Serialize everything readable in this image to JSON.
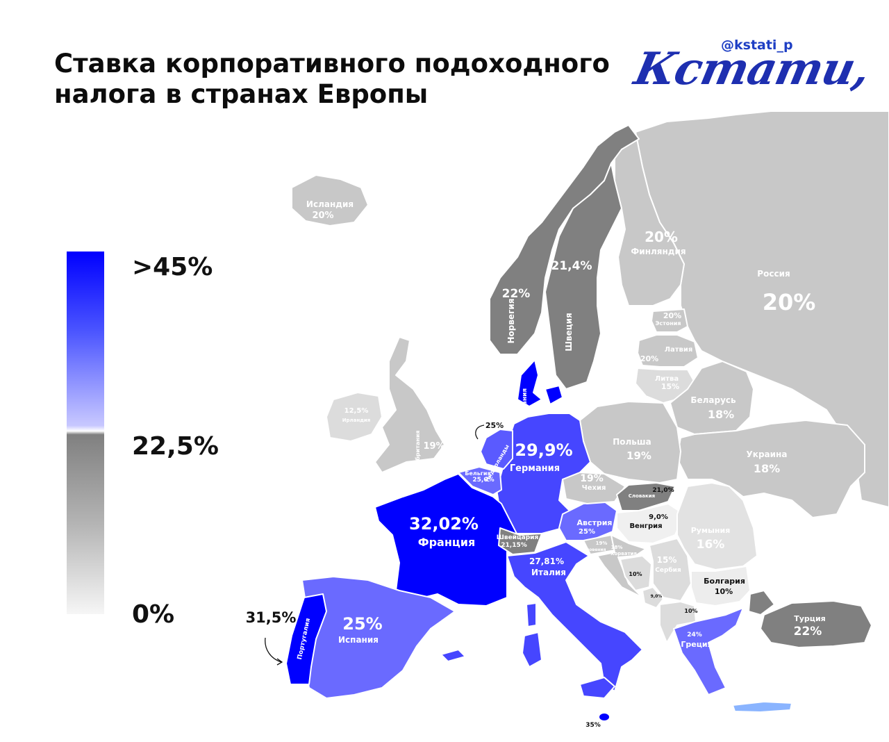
{
  "title": {
    "line1": "Ставка корпоративного подоходного",
    "line2": "налога в странах Европы"
  },
  "brand": {
    "handle": "@kstati_p",
    "logo": "Кстати,"
  },
  "legend": {
    "high": ">45%",
    "mid": "22,5%",
    "low": "0%"
  },
  "colors": {
    "high": "#0000ff",
    "mid_blue": "#6a6aff",
    "gray_dark": "#808080",
    "gray_light": "#c8c8c8",
    "gray_pale": "#dcdcdc"
  },
  "countries": [
    {
      "id": "iceland",
      "name": "Исландия",
      "rate": "20%"
    },
    {
      "id": "norway",
      "name": "Норвегия",
      "rate": "22%"
    },
    {
      "id": "sweden",
      "name": "Швеция",
      "rate": "21,4%"
    },
    {
      "id": "finland",
      "name": "Финляндия",
      "rate": "20%"
    },
    {
      "id": "russia",
      "name": "Россия",
      "rate": "20%"
    },
    {
      "id": "estonia",
      "name": "Эстония",
      "rate": "20%"
    },
    {
      "id": "latvia",
      "name": "Латвия",
      "rate": "20%"
    },
    {
      "id": "lithuania",
      "name": "Литва",
      "rate": "15%"
    },
    {
      "id": "belarus",
      "name": "Беларусь",
      "rate": "18%"
    },
    {
      "id": "ukraine",
      "name": "Украина",
      "rate": "18%"
    },
    {
      "id": "poland",
      "name": "Польша",
      "rate": "19%"
    },
    {
      "id": "germany",
      "name": "Германия",
      "rate": "29,9%"
    },
    {
      "id": "denmark",
      "name": "Дания",
      "rate": ""
    },
    {
      "id": "netherlands",
      "name": "Нидерланды",
      "rate": "25%"
    },
    {
      "id": "belgium",
      "name": "Бельгия",
      "rate": "25,0%"
    },
    {
      "id": "uk",
      "name": "Великобритания",
      "rate": "19%"
    },
    {
      "id": "ireland",
      "name": "Ирландия",
      "rate": "12,5%"
    },
    {
      "id": "france",
      "name": "Франция",
      "rate": "32,02%"
    },
    {
      "id": "spain",
      "name": "Испания",
      "rate": "25%"
    },
    {
      "id": "portugal",
      "name": "Португалия",
      "rate": "31,5%"
    },
    {
      "id": "switzerland",
      "name": "Швейцария",
      "rate": "21,15%"
    },
    {
      "id": "italy",
      "name": "Италия",
      "rate": "27,81%"
    },
    {
      "id": "austria",
      "name": "Австрия",
      "rate": "25%"
    },
    {
      "id": "czechia",
      "name": "Чехия",
      "rate": "19%"
    },
    {
      "id": "slovakia",
      "name": "Словакия",
      "rate": "21,0%"
    },
    {
      "id": "hungary",
      "name": "Венгрия",
      "rate": "9,0%"
    },
    {
      "id": "slovenia",
      "name": "Словения",
      "rate": "19%"
    },
    {
      "id": "croatia",
      "name": "Хорватия",
      "rate": "18%"
    },
    {
      "id": "serbia",
      "name": "Сербия",
      "rate": "15%"
    },
    {
      "id": "romania",
      "name": "Румыния",
      "rate": "16%"
    },
    {
      "id": "bulgaria",
      "name": "Болгария",
      "rate": "10%"
    },
    {
      "id": "bosnia",
      "name": "",
      "rate": "10%"
    },
    {
      "id": "montenegro",
      "name": "",
      "rate": "9,0%"
    },
    {
      "id": "macedonia",
      "name": "",
      "rate": "10%"
    },
    {
      "id": "greece",
      "name": "Греция",
      "rate": "24%"
    },
    {
      "id": "turkey",
      "name": "Турция",
      "rate": "22%"
    },
    {
      "id": "malta",
      "name": "",
      "rate": "35%"
    }
  ]
}
